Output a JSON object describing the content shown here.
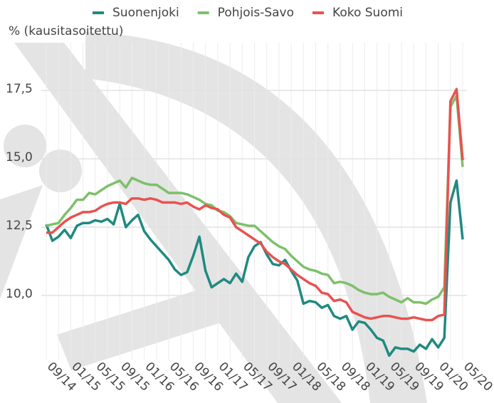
{
  "chart_data": {
    "type": "line",
    "y_label": "% (kausitasoitettu)",
    "categories": [
      "09/14",
      null,
      null,
      null,
      "01/15",
      null,
      null,
      null,
      "05/15",
      null,
      null,
      null,
      "09/15",
      null,
      null,
      null,
      "01/16",
      null,
      null,
      null,
      "05/16",
      null,
      null,
      null,
      "09/16",
      null,
      null,
      null,
      "01/17",
      null,
      null,
      null,
      "05/17",
      null,
      null,
      null,
      "09/17",
      null,
      null,
      null,
      "01/18",
      null,
      null,
      null,
      "05/18",
      null,
      null,
      null,
      "09/18",
      null,
      null,
      null,
      "01/19",
      null,
      null,
      null,
      "05/19",
      null,
      null,
      null,
      "09/19",
      null,
      null,
      null,
      "01/20",
      null,
      null,
      null,
      "05/20"
    ],
    "series": [
      {
        "name": "Suonenjoki",
        "color": "#1f8a80",
        "values": [
          12.6,
          12.0,
          12.15,
          12.4,
          12.1,
          12.55,
          12.65,
          12.65,
          12.75,
          12.7,
          12.8,
          12.6,
          13.35,
          12.5,
          12.75,
          12.95,
          12.35,
          12.05,
          11.8,
          11.55,
          11.3,
          10.95,
          10.75,
          10.85,
          11.45,
          12.15,
          10.9,
          10.3,
          10.45,
          10.6,
          10.45,
          10.8,
          10.5,
          11.4,
          11.8,
          11.95,
          11.5,
          11.15,
          11.1,
          11.3,
          10.9,
          10.55,
          9.7,
          9.8,
          9.75,
          9.55,
          9.65,
          9.25,
          9.15,
          9.25,
          8.75,
          9.05,
          9.0,
          8.75,
          8.45,
          8.35,
          7.8,
          8.1,
          8.05,
          8.05,
          7.95,
          8.2,
          8.05,
          8.4,
          8.1,
          8.45,
          13.4,
          14.2,
          12.05
        ]
      },
      {
        "name": "Pohjois-Savo",
        "color": "#7dc06a",
        "values": [
          12.55,
          12.6,
          12.65,
          12.95,
          13.2,
          13.5,
          13.5,
          13.75,
          13.7,
          13.85,
          14.0,
          14.1,
          14.2,
          13.95,
          14.3,
          14.2,
          14.1,
          14.05,
          14.05,
          13.9,
          13.75,
          13.75,
          13.75,
          13.7,
          13.6,
          13.5,
          13.35,
          13.3,
          13.1,
          13.05,
          12.9,
          12.65,
          12.6,
          12.55,
          12.55,
          12.35,
          12.15,
          11.95,
          11.8,
          11.7,
          11.45,
          11.25,
          11.05,
          10.95,
          10.9,
          10.8,
          10.75,
          10.45,
          10.5,
          10.45,
          10.35,
          10.2,
          10.1,
          10.05,
          10.05,
          10.1,
          9.95,
          9.85,
          9.75,
          9.9,
          9.75,
          9.75,
          9.7,
          9.85,
          9.95,
          10.3,
          16.9,
          17.3,
          14.7
        ]
      },
      {
        "name": "Koko Suomi",
        "color": "#e8524f",
        "values": [
          12.3,
          12.3,
          12.5,
          12.7,
          12.85,
          12.95,
          13.05,
          13.05,
          13.1,
          13.25,
          13.35,
          13.4,
          13.4,
          13.35,
          13.55,
          13.55,
          13.5,
          13.55,
          13.5,
          13.4,
          13.4,
          13.4,
          13.35,
          13.4,
          13.25,
          13.15,
          13.3,
          13.2,
          13.15,
          12.95,
          12.85,
          12.5,
          12.35,
          12.2,
          12.05,
          11.9,
          11.6,
          11.4,
          11.25,
          11.15,
          10.95,
          10.75,
          10.6,
          10.45,
          10.35,
          10.1,
          10.05,
          9.8,
          9.85,
          9.75,
          9.4,
          9.3,
          9.2,
          9.15,
          9.2,
          9.25,
          9.25,
          9.2,
          9.15,
          9.15,
          9.2,
          9.15,
          9.1,
          9.1,
          9.25,
          9.3,
          17.1,
          17.55,
          14.95
        ]
      }
    ],
    "ylim": [
      7.7,
      19.2
    ],
    "yticks": [
      {
        "value": 10,
        "label": "10,0"
      },
      {
        "value": 12.5,
        "label": "12,5"
      },
      {
        "value": 15,
        "label": "15,0"
      },
      {
        "value": 17.5,
        "label": "17,5"
      }
    ],
    "grid": true,
    "legend": "top"
  }
}
